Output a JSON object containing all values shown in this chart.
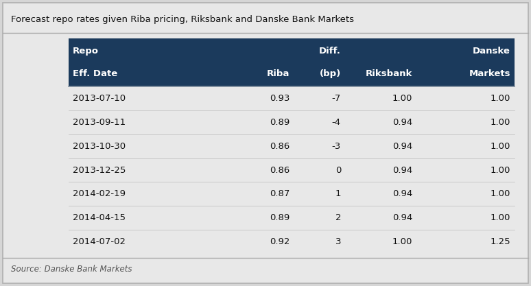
{
  "title": "Forecast repo rates given Riba pricing, Riksbank and Danske Bank Markets",
  "source": "Source: Danske Bank Markets",
  "header_line1": [
    "Repo",
    "",
    "Diff.",
    "",
    "Danske"
  ],
  "header_line2": [
    "Eff. Date",
    "Riba",
    "(bp)",
    "Riksbank",
    "Markets"
  ],
  "rows": [
    [
      "2013-07-10",
      "0.93",
      "-7",
      "1.00",
      "1.00"
    ],
    [
      "2013-09-11",
      "0.89",
      "-4",
      "0.94",
      "1.00"
    ],
    [
      "2013-10-30",
      "0.86",
      "-3",
      "0.94",
      "1.00"
    ],
    [
      "2013-12-25",
      "0.86",
      "0",
      "0.94",
      "1.00"
    ],
    [
      "2014-02-19",
      "0.87",
      "1",
      "0.94",
      "1.00"
    ],
    [
      "2014-04-15",
      "0.89",
      "2",
      "0.94",
      "1.00"
    ],
    [
      "2014-07-02",
      "0.92",
      "3",
      "1.00",
      "1.25"
    ]
  ],
  "header_bg": "#1b3a5c",
  "header_fg": "#ffffff",
  "fig_bg": "#d6d6d6",
  "inner_bg": "#e8e8e8",
  "row_bg": "#e8e8e8",
  "title_color": "#111111",
  "source_color": "#555555",
  "col_aligns": [
    "left",
    "right",
    "right",
    "right",
    "right"
  ],
  "col_starts_pct": [
    0.135,
    0.385,
    0.505,
    0.62,
    0.78
  ],
  "col_ends_pct": [
    0.385,
    0.505,
    0.62,
    0.78,
    0.97
  ]
}
